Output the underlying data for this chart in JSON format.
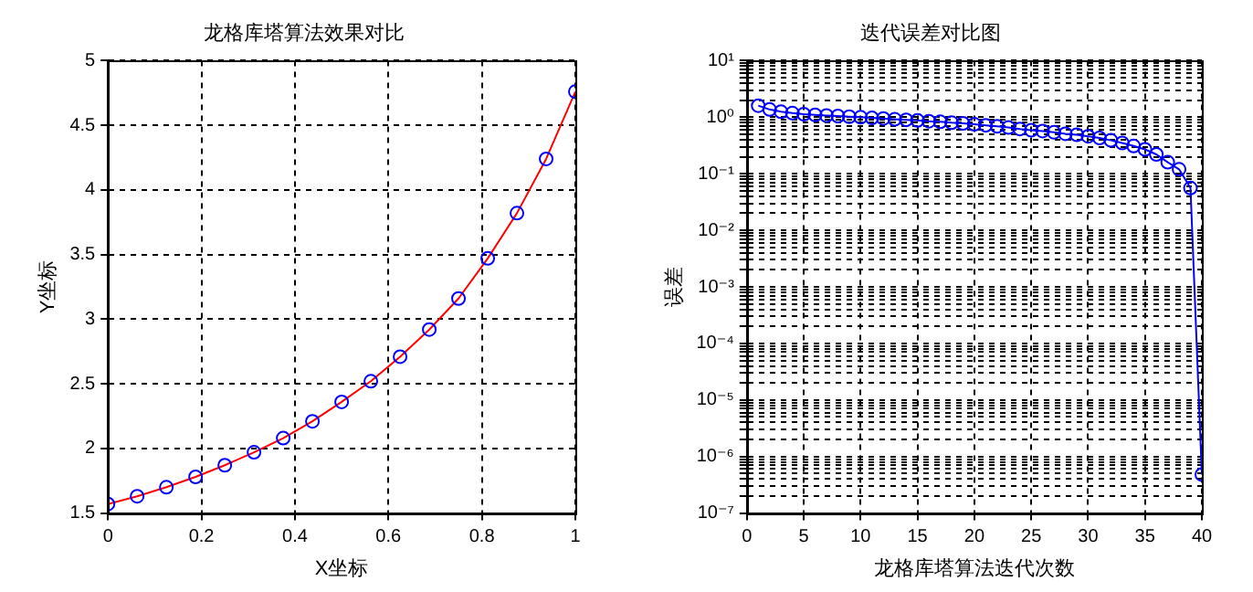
{
  "chart_data": [
    {
      "type": "line",
      "title": "龙格库塔算法效果对比",
      "xlabel": "X坐标",
      "ylabel": "Y坐标",
      "x": [
        0,
        0.0625,
        0.125,
        0.1875,
        0.25,
        0.3125,
        0.375,
        0.4375,
        0.5,
        0.5625,
        0.625,
        0.6875,
        0.75,
        0.8125,
        0.875,
        0.9375,
        1
      ],
      "series": [
        {
          "type": "scatter",
          "color": "#0000ff",
          "marker": "circle",
          "values": [
            1.57,
            1.63,
            1.7,
            1.78,
            1.87,
            1.97,
            2.08,
            2.21,
            2.36,
            2.52,
            2.71,
            2.92,
            3.16,
            3.47,
            3.82,
            4.24,
            4.76
          ]
        },
        {
          "type": "line",
          "color": "#ff0000",
          "marker": "none",
          "line_style": "solid",
          "values": [
            1.57,
            1.63,
            1.7,
            1.78,
            1.87,
            1.97,
            2.08,
            2.21,
            2.36,
            2.52,
            2.71,
            2.92,
            3.16,
            3.47,
            3.82,
            4.24,
            4.76
          ]
        }
      ],
      "xlim": [
        0,
        1
      ],
      "xticks": [
        0,
        0.2,
        0.4,
        0.6,
        0.8,
        1
      ],
      "ylim": [
        1.5,
        5
      ],
      "yticks": [
        1.5,
        2,
        2.5,
        3,
        3.5,
        4,
        4.5,
        5
      ],
      "grid": true,
      "legend": false
    },
    {
      "type": "line",
      "title": "迭代误差对比图",
      "xlabel": "龙格库塔算法迭代次数",
      "ylabel": "误差",
      "log": "y",
      "x": [
        1,
        2,
        3,
        4,
        5,
        6,
        7,
        8,
        9,
        10,
        11,
        12,
        13,
        14,
        15,
        16,
        17,
        18,
        19,
        20,
        21,
        22,
        23,
        24,
        25,
        26,
        27,
        28,
        29,
        30,
        31,
        32,
        33,
        34,
        35,
        36,
        37,
        38,
        39,
        40
      ],
      "series": [
        {
          "color": "#0000ff",
          "marker": "circle",
          "line_style": "solid",
          "values": [
            1.6,
            1.37,
            1.25,
            1.18,
            1.13,
            1.1,
            1.07,
            1.05,
            1.02,
            1.0,
            0.97,
            0.95,
            0.92,
            0.9,
            0.88,
            0.85,
            0.83,
            0.8,
            0.78,
            0.75,
            0.72,
            0.69,
            0.66,
            0.62,
            0.59,
            0.57,
            0.54,
            0.51,
            0.49,
            0.46,
            0.43,
            0.39,
            0.35,
            0.31,
            0.27,
            0.22,
            0.16,
            0.12,
            0.056,
            4.8e-07
          ]
        }
      ],
      "xlim": [
        0,
        40
      ],
      "xticks": [
        0,
        5,
        10,
        15,
        20,
        25,
        30,
        35,
        40
      ],
      "ylim": [
        1e-07,
        10
      ],
      "yticks": [
        {
          "value": 1e-07,
          "label": "10⁻⁷"
        },
        {
          "value": 2e-07,
          "label": null
        },
        {
          "value": 3e-07,
          "label": null
        },
        {
          "value": 4e-07,
          "label": null
        },
        {
          "value": 5e-07,
          "label": null
        },
        {
          "value": 6e-07,
          "label": null
        },
        {
          "value": 7e-07,
          "label": null
        },
        {
          "value": 8e-07,
          "label": null
        },
        {
          "value": 9e-07,
          "label": null
        },
        {
          "value": 1e-06,
          "label": "10⁻⁶"
        },
        {
          "value": 2e-06,
          "label": null
        },
        {
          "value": 3e-06,
          "label": null
        },
        {
          "value": 4e-06,
          "label": null
        },
        {
          "value": 5e-06,
          "label": null
        },
        {
          "value": 6e-06,
          "label": null
        },
        {
          "value": 7e-06,
          "label": null
        },
        {
          "value": 8e-06,
          "label": null
        },
        {
          "value": 9e-06,
          "label": null
        },
        {
          "value": 1e-05,
          "label": "10⁻⁵"
        },
        {
          "value": 2e-05,
          "label": null
        },
        {
          "value": 3e-05,
          "label": null
        },
        {
          "value": 4e-05,
          "label": null
        },
        {
          "value": 5e-05,
          "label": null
        },
        {
          "value": 6e-05,
          "label": null
        },
        {
          "value": 7e-05,
          "label": null
        },
        {
          "value": 8e-05,
          "label": null
        },
        {
          "value": 9e-05,
          "label": null
        },
        {
          "value": 0.0001,
          "label": "10⁻⁴"
        },
        {
          "value": 0.0002,
          "label": null
        },
        {
          "value": 0.0003,
          "label": null
        },
        {
          "value": 0.0004,
          "label": null
        },
        {
          "value": 0.0005,
          "label": null
        },
        {
          "value": 0.0006,
          "label": null
        },
        {
          "value": 0.0007,
          "label": null
        },
        {
          "value": 0.0008,
          "label": null
        },
        {
          "value": 0.0009,
          "label": null
        },
        {
          "value": 0.001,
          "label": "10⁻³"
        },
        {
          "value": 0.002,
          "label": null
        },
        {
          "value": 0.003,
          "label": null
        },
        {
          "value": 0.004,
          "label": null
        },
        {
          "value": 0.005,
          "label": null
        },
        {
          "value": 0.006,
          "label": null
        },
        {
          "value": 0.007,
          "label": null
        },
        {
          "value": 0.008,
          "label": null
        },
        {
          "value": 0.009,
          "label": null
        },
        {
          "value": 0.01,
          "label": "10⁻²"
        },
        {
          "value": 0.02,
          "label": null
        },
        {
          "value": 0.03,
          "label": null
        },
        {
          "value": 0.04,
          "label": null
        },
        {
          "value": 0.05,
          "label": null
        },
        {
          "value": 0.06,
          "label": null
        },
        {
          "value": 0.07,
          "label": null
        },
        {
          "value": 0.08,
          "label": null
        },
        {
          "value": 0.09,
          "label": null
        },
        {
          "value": 0.1,
          "label": "10⁻¹"
        },
        {
          "value": 0.2,
          "label": null
        },
        {
          "value": 0.3,
          "label": null
        },
        {
          "value": 0.4,
          "label": null
        },
        {
          "value": 0.5,
          "label": null
        },
        {
          "value": 0.6,
          "label": null
        },
        {
          "value": 0.7,
          "label": null
        },
        {
          "value": 0.8,
          "label": null
        },
        {
          "value": 0.9,
          "label": null
        },
        {
          "value": 1,
          "label": "10⁰"
        },
        {
          "value": 2,
          "label": null
        },
        {
          "value": 3,
          "label": null
        },
        {
          "value": 4,
          "label": null
        },
        {
          "value": 5,
          "label": null
        },
        {
          "value": 6,
          "label": null
        },
        {
          "value": 7,
          "label": null
        },
        {
          "value": 8,
          "label": null
        },
        {
          "value": 9,
          "label": null
        },
        {
          "value": 10,
          "label": "10¹"
        }
      ],
      "grid": true,
      "legend": false
    }
  ]
}
